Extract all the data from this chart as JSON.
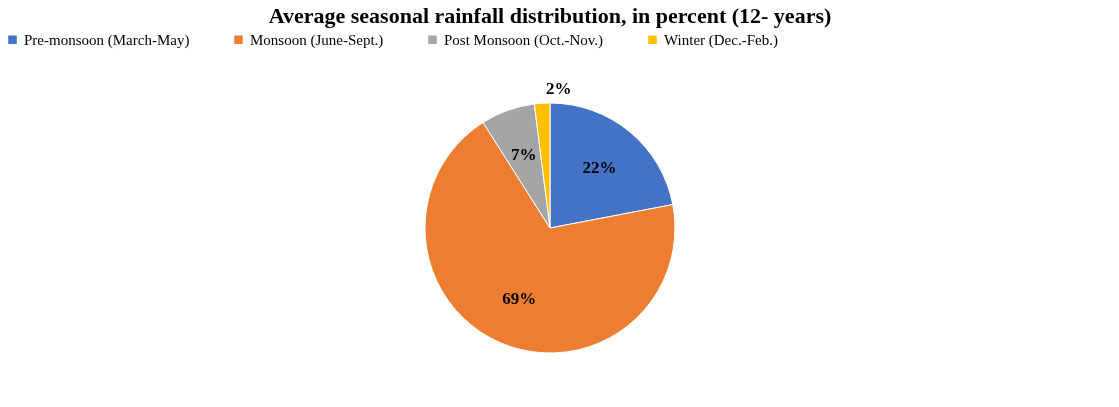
{
  "chart_data": {
    "type": "pie",
    "title": "Average seasonal rainfall distribution, in percent (12- years)",
    "categories": [
      "Pre-monsoon (March-May)",
      "Monsoon (June-Sept.)",
      "Post Monsoon (Oct.-Nov.)",
      "Winter (Dec.-Feb.)"
    ],
    "values": [
      22,
      69,
      7,
      2
    ],
    "colors": [
      "#4472c4",
      "#ed7d31",
      "#a5a5a5",
      "#ffc000"
    ],
    "value_labels": [
      "22%",
      "69%",
      "7%",
      "2%"
    ],
    "legend": "top"
  }
}
